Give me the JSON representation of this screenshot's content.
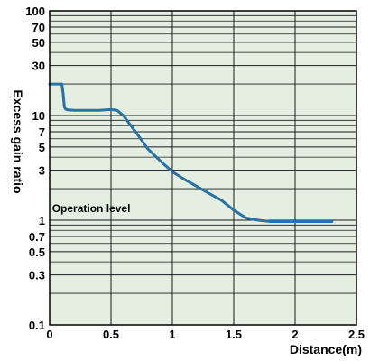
{
  "chart_data": {
    "type": "line",
    "xlabel": "Distance(m)",
    "ylabel": "Excess gain ratio",
    "xlim": [
      0,
      2.5
    ],
    "ylim": [
      0.1,
      100
    ],
    "yscale": "log",
    "grid": true,
    "x_ticks": [
      0,
      0.5,
      1,
      1.5,
      2,
      2.5
    ],
    "x_tick_labels": [
      "0",
      "0.5",
      "1",
      "1.5",
      "2",
      "2.5"
    ],
    "y_ticks": [
      0.1,
      0.3,
      0.5,
      0.7,
      1,
      3,
      5,
      7,
      10,
      30,
      50,
      70,
      100
    ],
    "y_tick_labels": [
      "0.1",
      "0.3",
      "0.5",
      "0.7",
      "1",
      "3",
      "5",
      "7",
      "10",
      "30",
      "50",
      "70",
      "100"
    ],
    "y_minor_gridlines": [
      0.2,
      0.4,
      0.6,
      0.8,
      0.9,
      2,
      4,
      6,
      8,
      9,
      20,
      40,
      60,
      80,
      90
    ],
    "annotations": [
      {
        "text": "Operation level",
        "x": 0.02,
        "y": 1.2
      }
    ],
    "series": [
      {
        "x": [
          0,
          0.1,
          0.11,
          0.12,
          0.13,
          0.15,
          0.2,
          0.3,
          0.4,
          0.5,
          0.55,
          0.6,
          0.7,
          0.8,
          0.9,
          1.0,
          1.1,
          1.2,
          1.3,
          1.4,
          1.5,
          1.6,
          1.7,
          1.8,
          2.0,
          2.2,
          2.3
        ],
        "values": [
          20,
          20,
          16,
          12,
          11.5,
          11.3,
          11.2,
          11.2,
          11.2,
          11.4,
          11.2,
          10,
          7,
          4.8,
          3.7,
          2.9,
          2.45,
          2.1,
          1.8,
          1.55,
          1.25,
          1.05,
          1.0,
          0.97,
          0.97,
          0.97,
          0.97
        ]
      }
    ],
    "colors": {
      "plot_background": "#e4efe2",
      "grid": "#1a1a1a",
      "line": "#2872a6",
      "frame": "#000000"
    }
  }
}
